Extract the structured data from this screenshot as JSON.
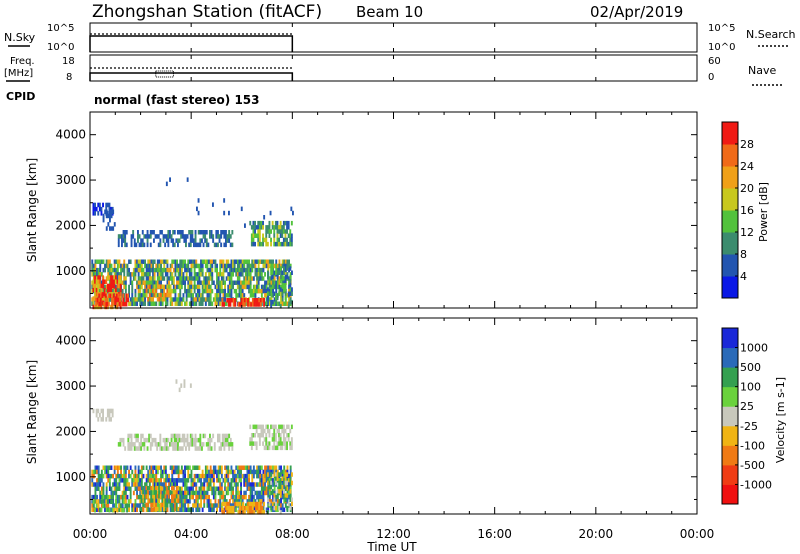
{
  "header": {
    "title": "Zhongshan Station (fitACF)",
    "beam": "Beam 10",
    "date": "02/Apr/2019"
  },
  "noise_panel": {
    "left_label": "N.Sky",
    "right_label": "N.Search",
    "left_ticks": [
      "10^5",
      "10^0"
    ],
    "right_ticks": [
      "10^5",
      "10^0"
    ]
  },
  "freq_panel": {
    "left_label_1": "Freq.",
    "left_label_2": "[MHz]",
    "right_label": "Nave",
    "left_ticks": [
      "18",
      "8"
    ],
    "right_ticks": [
      "60",
      "0"
    ]
  },
  "cpid": {
    "label": "CPID",
    "text": "normal (fast stereo) 153"
  },
  "chart_data": [
    {
      "type": "heatmap",
      "parameter": "Power",
      "ylabel": "Slant Range [km]",
      "colorbar_label": "Power [dB]",
      "ylim": [
        180,
        4500
      ],
      "yticks": [
        1000,
        2000,
        3000,
        4000
      ],
      "colorbar_ticks": [
        "28",
        "24",
        "20",
        "16",
        "12",
        "8",
        "4"
      ],
      "colors": [
        "#0a18e6",
        "#2255b0",
        "#3b8c6e",
        "#52c23c",
        "#c8c81e",
        "#f0a018",
        "#f06a18",
        "#f01a14"
      ],
      "data_extent_ut": [
        "00:00",
        "08:00"
      ]
    },
    {
      "type": "heatmap",
      "parameter": "Velocity",
      "xlabel": "Time UT",
      "ylabel": "Slant Range [km]",
      "colorbar_label": "Velocity [m s-1]",
      "ylim": [
        180,
        4500
      ],
      "yticks": [
        1000,
        2000,
        3000,
        4000
      ],
      "colorbar_ticks": [
        "1000",
        "500",
        "100",
        "25",
        "-25",
        "-100",
        "-500",
        "-1000"
      ],
      "colors": [
        "#1a28d8",
        "#2a6ab8",
        "#34a050",
        "#6ad23c",
        "#c8c8bc",
        "#f0b414",
        "#f07a14",
        "#f03c14",
        "#f01010"
      ],
      "xticks": [
        "00:00",
        "04:00",
        "08:00",
        "12:00",
        "16:00",
        "20:00",
        "00:00"
      ],
      "data_extent_ut": [
        "00:00",
        "08:00"
      ]
    }
  ]
}
